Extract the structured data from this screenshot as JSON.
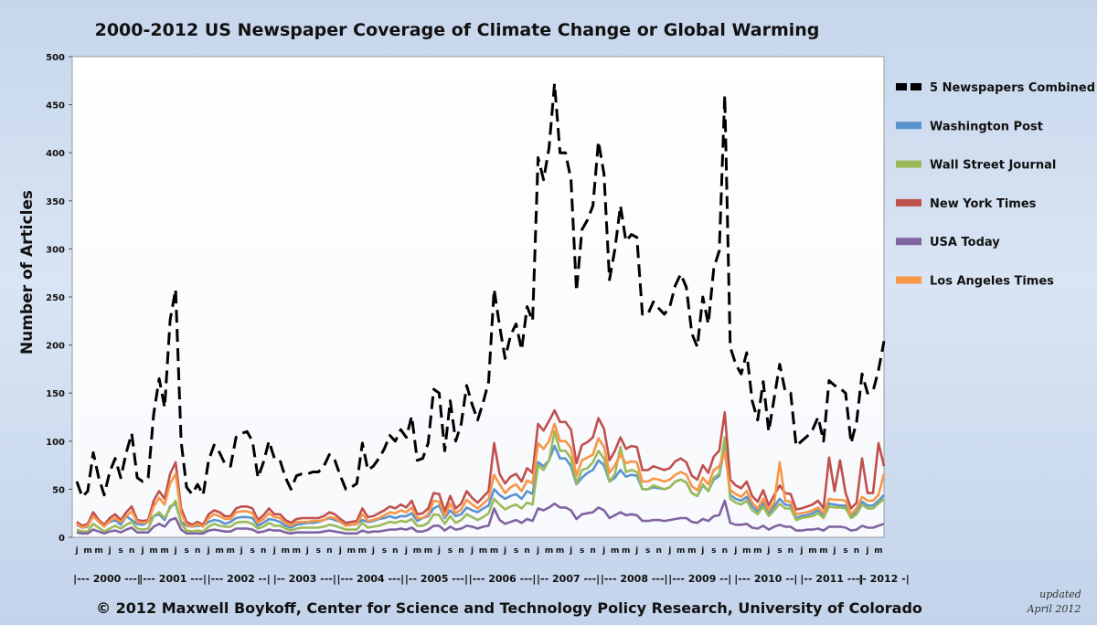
{
  "chart_data": {
    "type": "line",
    "title": "2000-2012 US Newspaper Coverage of Climate Change or Global Warming",
    "ylabel": "Number of Articles",
    "ylim": [
      0,
      500
    ],
    "yticks": [
      0,
      50,
      100,
      150,
      200,
      250,
      300,
      350,
      400,
      450,
      500
    ],
    "grid": false,
    "legend_position": "right",
    "x_month_labels": [
      "j",
      "m",
      "m",
      "j",
      "s",
      "n",
      "j",
      "m",
      "m",
      "j",
      "s",
      "n",
      "j",
      "m",
      "m",
      "j",
      "s",
      "n",
      "j",
      "m",
      "m",
      "j",
      "s",
      "n",
      "j",
      "m",
      "m",
      "j",
      "s",
      "n",
      "j",
      "m",
      "m",
      "j",
      "s",
      "n",
      "j",
      "m",
      "m",
      "j",
      "s",
      "n",
      "j",
      "m",
      "m",
      "j",
      "s",
      "n",
      "j",
      "m",
      "m",
      "j",
      "s",
      "n",
      "j",
      "m",
      "m",
      "j",
      "s",
      "n",
      "j",
      "m",
      "m",
      "j",
      "s",
      "n",
      "j",
      "m",
      "m",
      "j",
      "s",
      "n",
      "j",
      "m",
      "m",
      "j",
      "s",
      "n",
      "j",
      "m",
      "m",
      "j",
      "s",
      "n",
      "j",
      "m",
      "m",
      "j",
      "s",
      "n",
      "j",
      "m",
      "m",
      "j",
      "s",
      "n",
      "j",
      "m",
      "m",
      "j",
      "s",
      "n",
      "j",
      "m",
      "m",
      "j",
      "s",
      "n",
      "j",
      "m",
      "m",
      "j",
      "s",
      "n",
      "j",
      "m",
      "m",
      "j",
      "s",
      "n",
      "j",
      "m",
      "m",
      "j",
      "s",
      "n",
      "j",
      "m",
      "m",
      "j",
      "s",
      "n",
      "j",
      "m",
      "m",
      "j",
      "s",
      "n",
      "j",
      "m",
      "m",
      "j",
      "s",
      "n",
      "j",
      "m"
    ],
    "year_axis_labels": [
      "|--- 2000 ---|",
      "|--- 2001 ---|",
      "|--- 2002 --|",
      "|-- 2003 ---|",
      "|--- 2004 ---|",
      "|-- 2005 ---|",
      "|--- 2006 ---|",
      "|-- 2007 ---|",
      "|--- 2008 ---|",
      "|--- 2009 --|",
      "|--- 2010 --|",
      "|-- 2011 ---|",
      "|- 2012 -|"
    ],
    "series": [
      {
        "name": "5 Newspapers Combined",
        "color": "#000000",
        "dash": true,
        "values": [
          58,
          42,
          48,
          88,
          62,
          44,
          68,
          82,
          62,
          88,
          108,
          62,
          58,
          62,
          128,
          165,
          135,
          226,
          258,
          100,
          52,
          45,
          55,
          44,
          80,
          96,
          88,
          76,
          74,
          104,
          108,
          110,
          100,
          62,
          78,
          100,
          82,
          80,
          62,
          50,
          64,
          66,
          66,
          68,
          68,
          74,
          86,
          80,
          64,
          50,
          52,
          56,
          98,
          70,
          74,
          82,
          92,
          106,
          100,
          112,
          104,
          126,
          80,
          82,
          98,
          154,
          150,
          90,
          142,
          100,
          118,
          158,
          138,
          122,
          140,
          162,
          258,
          220,
          186,
          210,
          222,
          195,
          240,
          225,
          395,
          372,
          405,
          472,
          400,
          400,
          372,
          256,
          320,
          330,
          345,
          412,
          378,
          268,
          300,
          345,
          308,
          315,
          312,
          232,
          232,
          245,
          238,
          232,
          240,
          262,
          274,
          260,
          212,
          198,
          250,
          222,
          280,
          298,
          460,
          198,
          180,
          170,
          192,
          142,
          122,
          162,
          110,
          145,
          180,
          152,
          150,
          95,
          100,
          105,
          112,
          125,
          100,
          163,
          158,
          155,
          150,
          98,
          120,
          170,
          150,
          152,
          174,
          204
        ]
      },
      {
        "name": "Washington Post",
        "color": "#5b93cf",
        "dash": false,
        "values": [
          13,
          10,
          11,
          25,
          18,
          12,
          16,
          18,
          13,
          22,
          18,
          14,
          13,
          16,
          22,
          24,
          18,
          32,
          35,
          16,
          12,
          11,
          12,
          12,
          16,
          18,
          17,
          14,
          16,
          20,
          21,
          21,
          20,
          12,
          15,
          19,
          18,
          16,
          12,
          10,
          13,
          14,
          15,
          15,
          16,
          18,
          20,
          18,
          16,
          13,
          13,
          14,
          18,
          16,
          17,
          19,
          20,
          22,
          20,
          22,
          22,
          25,
          17,
          20,
          22,
          30,
          33,
          20,
          28,
          22,
          24,
          31,
          28,
          26,
          30,
          33,
          50,
          44,
          40,
          43,
          45,
          40,
          48,
          45,
          78,
          74,
          80,
          95,
          82,
          82,
          74,
          55,
          62,
          67,
          70,
          80,
          75,
          58,
          62,
          70,
          63,
          65,
          64,
          50,
          50,
          52,
          51,
          50,
          52,
          58,
          60,
          57,
          46,
          43,
          54,
          48,
          60,
          64,
          95,
          44,
          40,
          38,
          42,
          32,
          27,
          36,
          25,
          32,
          40,
          34,
          33,
          20,
          22,
          23,
          25,
          28,
          22,
          35,
          34,
          33,
          33,
          22,
          26,
          37,
          33,
          33,
          38,
          44
        ]
      },
      {
        "name": "Wall Street Journal",
        "color": "#9bbb59",
        "dash": false,
        "values": [
          8,
          6,
          6,
          14,
          10,
          6,
          9,
          12,
          9,
          13,
          16,
          9,
          8,
          9,
          22,
          26,
          20,
          30,
          38,
          14,
          7,
          6,
          7,
          6,
          11,
          14,
          12,
          11,
          11,
          15,
          16,
          16,
          14,
          9,
          11,
          15,
          12,
          12,
          9,
          7,
          9,
          10,
          10,
          10,
          10,
          11,
          13,
          12,
          10,
          8,
          8,
          8,
          15,
          10,
          11,
          12,
          14,
          16,
          15,
          17,
          16,
          19,
          12,
          12,
          15,
          24,
          23,
          14,
          22,
          15,
          18,
          24,
          21,
          18,
          21,
          25,
          40,
          34,
          29,
          32,
          34,
          30,
          36,
          34,
          75,
          70,
          80,
          110,
          90,
          90,
          82,
          56,
          70,
          72,
          78,
          90,
          82,
          58,
          66,
          94,
          68,
          70,
          68,
          50,
          50,
          54,
          52,
          50,
          52,
          58,
          60,
          57,
          46,
          43,
          55,
          48,
          62,
          66,
          104,
          40,
          36,
          34,
          38,
          28,
          24,
          32,
          22,
          28,
          35,
          30,
          30,
          18,
          20,
          21,
          22,
          25,
          20,
          32,
          31,
          31,
          30,
          20,
          24,
          34,
          30,
          30,
          35,
          40
        ]
      },
      {
        "name": "New York Times",
        "color": "#c0504d",
        "dash": false,
        "values": [
          16,
          12,
          14,
          26,
          18,
          13,
          20,
          24,
          18,
          26,
          32,
          18,
          17,
          18,
          38,
          48,
          40,
          66,
          78,
          30,
          16,
          13,
          16,
          13,
          24,
          28,
          26,
          22,
          22,
          30,
          32,
          32,
          30,
          18,
          23,
          30,
          24,
          24,
          18,
          15,
          19,
          20,
          20,
          20,
          20,
          22,
          26,
          24,
          19,
          15,
          16,
          17,
          30,
          21,
          22,
          25,
          28,
          32,
          30,
          34,
          31,
          38,
          24,
          25,
          30,
          46,
          45,
          27,
          43,
          30,
          35,
          48,
          41,
          36,
          42,
          48,
          98,
          66,
          56,
          63,
          66,
          58,
          72,
          67,
          118,
          111,
          121,
          132,
          120,
          120,
          112,
          77,
          96,
          99,
          104,
          124,
          113,
          80,
          90,
          104,
          92,
          95,
          94,
          70,
          70,
          74,
          72,
          70,
          72,
          79,
          82,
          78,
          64,
          60,
          75,
          67,
          84,
          90,
          130,
          60,
          54,
          51,
          58,
          43,
          37,
          49,
          33,
          44,
          54,
          46,
          45,
          29,
          30,
          32,
          34,
          38,
          30,
          83,
          48,
          80,
          46,
          30,
          36,
          82,
          46,
          46,
          98,
          74
        ]
      },
      {
        "name": "USA Today",
        "color": "#8064a2",
        "dash": false,
        "values": [
          5,
          4,
          4,
          8,
          6,
          4,
          6,
          7,
          5,
          8,
          10,
          5,
          5,
          5,
          11,
          14,
          11,
          18,
          20,
          8,
          4,
          4,
          4,
          4,
          7,
          8,
          7,
          6,
          6,
          9,
          9,
          9,
          8,
          5,
          6,
          8,
          7,
          7,
          5,
          4,
          5,
          5,
          5,
          5,
          5,
          6,
          7,
          6,
          5,
          4,
          4,
          4,
          7,
          5,
          6,
          6,
          7,
          8,
          8,
          9,
          8,
          10,
          6,
          6,
          8,
          12,
          12,
          7,
          11,
          8,
          9,
          12,
          11,
          9,
          11,
          12,
          30,
          18,
          14,
          16,
          18,
          15,
          19,
          17,
          30,
          28,
          31,
          35,
          31,
          31,
          28,
          19,
          24,
          25,
          26,
          31,
          28,
          20,
          23,
          26,
          23,
          24,
          23,
          17,
          17,
          18,
          18,
          17,
          18,
          19,
          20,
          20,
          16,
          15,
          19,
          17,
          22,
          23,
          38,
          15,
          13,
          13,
          14,
          10,
          9,
          12,
          8,
          11,
          13,
          11,
          11,
          7,
          7,
          8,
          8,
          9,
          7,
          11,
          11,
          11,
          10,
          7,
          8,
          12,
          10,
          10,
          12,
          14
        ]
      },
      {
        "name": "Los Angeles Times",
        "color": "#f79646",
        "dash": false,
        "values": [
          14,
          10,
          12,
          22,
          16,
          11,
          17,
          20,
          16,
          22,
          27,
          16,
          15,
          16,
          32,
          41,
          34,
          56,
          66,
          25,
          13,
          11,
          14,
          11,
          20,
          24,
          22,
          19,
          19,
          26,
          27,
          27,
          25,
          15,
          19,
          25,
          21,
          20,
          15,
          12,
          16,
          16,
          16,
          17,
          17,
          18,
          21,
          20,
          16,
          12,
          13,
          14,
          24,
          17,
          18,
          20,
          23,
          26,
          25,
          28,
          26,
          31,
          20,
          20,
          24,
          38,
          37,
          22,
          35,
          25,
          29,
          39,
          34,
          30,
          35,
          40,
          65,
          55,
          46,
          52,
          55,
          48,
          59,
          56,
          98,
          92,
          100,
          118,
          100,
          100,
          93,
          64,
          80,
          83,
          86,
          103,
          94,
          67,
          75,
          86,
          77,
          79,
          78,
          58,
          58,
          61,
          60,
          58,
          60,
          65,
          68,
          65,
          53,
          49,
          62,
          55,
          70,
          74,
          88,
          49,
          45,
          42,
          48,
          36,
          30,
          40,
          28,
          36,
          78,
          38,
          37,
          24,
          25,
          26,
          28,
          31,
          25,
          40,
          39,
          39,
          38,
          24,
          30,
          42,
          38,
          38,
          44,
          66
        ]
      }
    ]
  },
  "footer": {
    "credit": "© 2012 Maxwell Boykoff, Center for Science and Technology Policy Research, University of Colorado",
    "updated_line1": "updated",
    "updated_line2": "April 2012"
  }
}
